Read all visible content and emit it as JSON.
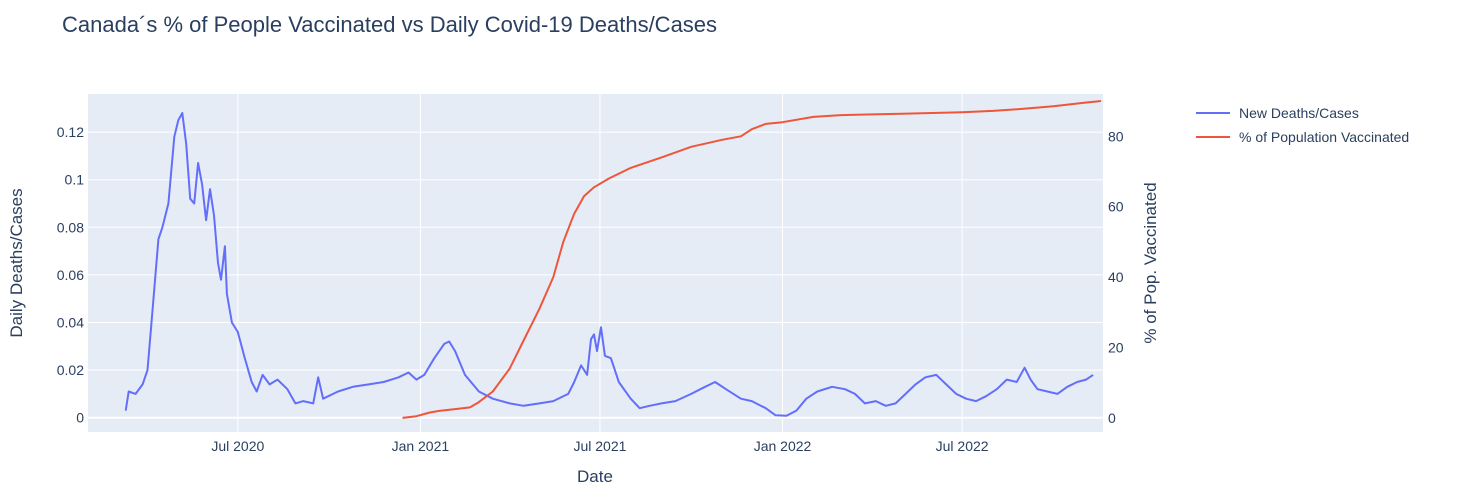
{
  "chart_data": {
    "type": "line",
    "title": "Canada´s % of People Vaccinated vs Daily Covid-19 Deaths/Cases",
    "xlabel": "Date",
    "ylabel": "Daily Deaths/Cases",
    "y2label": "% of Pop. Vaccinated",
    "xlim": [
      "2020-02-01",
      "2022-11-20"
    ],
    "ylim": [
      -0.006,
      0.136
    ],
    "y2lim": [
      -4,
      92
    ],
    "x_ticks": [
      {
        "date": "2020-07-01",
        "label": "Jul 2020"
      },
      {
        "date": "2021-01-01",
        "label": "Jan 2021"
      },
      {
        "date": "2021-07-01",
        "label": "Jul 2021"
      },
      {
        "date": "2022-01-01",
        "label": "Jan 2022"
      },
      {
        "date": "2022-07-01",
        "label": "Jul 2022"
      }
    ],
    "y_ticks": [
      {
        "value": 0,
        "label": "0"
      },
      {
        "value": 0.02,
        "label": "0.02"
      },
      {
        "value": 0.04,
        "label": "0.04"
      },
      {
        "value": 0.06,
        "label": "0.06"
      },
      {
        "value": 0.08,
        "label": "0.08"
      },
      {
        "value": 0.1,
        "label": "0.1"
      },
      {
        "value": 0.12,
        "label": "0.12"
      }
    ],
    "y2_ticks": [
      {
        "value": 0,
        "label": "0"
      },
      {
        "value": 20,
        "label": "20"
      },
      {
        "value": 40,
        "label": "40"
      },
      {
        "value": 60,
        "label": "60"
      },
      {
        "value": 80,
        "label": "80"
      }
    ],
    "grid": true,
    "legend_position": "top-right",
    "series": [
      {
        "name": "New Deaths/Cases",
        "axis": "y",
        "color": "#636efa",
        "points": [
          [
            "2020-03-10",
            0.003
          ],
          [
            "2020-03-13",
            0.011
          ],
          [
            "2020-03-20",
            0.01
          ],
          [
            "2020-03-27",
            0.014
          ],
          [
            "2020-04-01",
            0.02
          ],
          [
            "2020-04-06",
            0.045
          ],
          [
            "2020-04-12",
            0.075
          ],
          [
            "2020-04-16",
            0.08
          ],
          [
            "2020-04-22",
            0.09
          ],
          [
            "2020-04-28",
            0.118
          ],
          [
            "2020-05-02",
            0.125
          ],
          [
            "2020-05-06",
            0.128
          ],
          [
            "2020-05-10",
            0.115
          ],
          [
            "2020-05-14",
            0.092
          ],
          [
            "2020-05-18",
            0.09
          ],
          [
            "2020-05-22",
            0.107
          ],
          [
            "2020-05-26",
            0.098
          ],
          [
            "2020-05-30",
            0.083
          ],
          [
            "2020-06-03",
            0.096
          ],
          [
            "2020-06-07",
            0.085
          ],
          [
            "2020-06-11",
            0.065
          ],
          [
            "2020-06-14",
            0.058
          ],
          [
            "2020-06-18",
            0.072
          ],
          [
            "2020-06-20",
            0.052
          ],
          [
            "2020-06-25",
            0.04
          ],
          [
            "2020-07-01",
            0.036
          ],
          [
            "2020-07-08",
            0.025
          ],
          [
            "2020-07-15",
            0.015
          ],
          [
            "2020-07-20",
            0.011
          ],
          [
            "2020-07-26",
            0.018
          ],
          [
            "2020-08-02",
            0.014
          ],
          [
            "2020-08-10",
            0.016
          ],
          [
            "2020-08-20",
            0.012
          ],
          [
            "2020-08-28",
            0.006
          ],
          [
            "2020-09-05",
            0.007
          ],
          [
            "2020-09-15",
            0.006
          ],
          [
            "2020-09-20",
            0.017
          ],
          [
            "2020-09-25",
            0.008
          ],
          [
            "2020-10-10",
            0.011
          ],
          [
            "2020-10-25",
            0.013
          ],
          [
            "2020-11-10",
            0.014
          ],
          [
            "2020-11-25",
            0.015
          ],
          [
            "2020-12-10",
            0.017
          ],
          [
            "2020-12-20",
            0.019
          ],
          [
            "2020-12-28",
            0.016
          ],
          [
            "2021-01-05",
            0.018
          ],
          [
            "2021-01-15",
            0.025
          ],
          [
            "2021-01-25",
            0.031
          ],
          [
            "2021-01-30",
            0.032
          ],
          [
            "2021-02-05",
            0.028
          ],
          [
            "2021-02-15",
            0.018
          ],
          [
            "2021-03-01",
            0.011
          ],
          [
            "2021-03-15",
            0.008
          ],
          [
            "2021-04-01",
            0.006
          ],
          [
            "2021-04-15",
            0.005
          ],
          [
            "2021-05-01",
            0.006
          ],
          [
            "2021-05-15",
            0.007
          ],
          [
            "2021-05-30",
            0.01
          ],
          [
            "2021-06-05",
            0.015
          ],
          [
            "2021-06-12",
            0.022
          ],
          [
            "2021-06-18",
            0.018
          ],
          [
            "2021-06-22",
            0.033
          ],
          [
            "2021-06-25",
            0.035
          ],
          [
            "2021-06-28",
            0.028
          ],
          [
            "2021-07-02",
            0.038
          ],
          [
            "2021-07-06",
            0.026
          ],
          [
            "2021-07-12",
            0.025
          ],
          [
            "2021-07-20",
            0.015
          ],
          [
            "2021-08-01",
            0.008
          ],
          [
            "2021-08-10",
            0.004
          ],
          [
            "2021-08-20",
            0.005
          ],
          [
            "2021-09-01",
            0.006
          ],
          [
            "2021-09-15",
            0.007
          ],
          [
            "2021-10-01",
            0.01
          ],
          [
            "2021-10-15",
            0.013
          ],
          [
            "2021-10-25",
            0.015
          ],
          [
            "2021-11-05",
            0.012
          ],
          [
            "2021-11-20",
            0.008
          ],
          [
            "2021-12-01",
            0.007
          ],
          [
            "2021-12-15",
            0.004
          ],
          [
            "2021-12-25",
            0.001
          ],
          [
            "2022-01-05",
            0.0008
          ],
          [
            "2022-01-15",
            0.003
          ],
          [
            "2022-01-25",
            0.008
          ],
          [
            "2022-02-05",
            0.011
          ],
          [
            "2022-02-20",
            0.013
          ],
          [
            "2022-03-05",
            0.012
          ],
          [
            "2022-03-15",
            0.01
          ],
          [
            "2022-03-25",
            0.006
          ],
          [
            "2022-04-05",
            0.007
          ],
          [
            "2022-04-15",
            0.005
          ],
          [
            "2022-04-25",
            0.006
          ],
          [
            "2022-05-05",
            0.01
          ],
          [
            "2022-05-15",
            0.014
          ],
          [
            "2022-05-25",
            0.017
          ],
          [
            "2022-06-05",
            0.018
          ],
          [
            "2022-06-15",
            0.014
          ],
          [
            "2022-06-25",
            0.01
          ],
          [
            "2022-07-05",
            0.008
          ],
          [
            "2022-07-15",
            0.007
          ],
          [
            "2022-07-25",
            0.009
          ],
          [
            "2022-08-05",
            0.012
          ],
          [
            "2022-08-15",
            0.016
          ],
          [
            "2022-08-25",
            0.015
          ],
          [
            "2022-09-02",
            0.021
          ],
          [
            "2022-09-08",
            0.016
          ],
          [
            "2022-09-15",
            0.012
          ],
          [
            "2022-09-25",
            0.011
          ],
          [
            "2022-10-05",
            0.01
          ],
          [
            "2022-10-15",
            0.013
          ],
          [
            "2022-10-25",
            0.015
          ],
          [
            "2022-11-03",
            0.016
          ],
          [
            "2022-11-10",
            0.018
          ]
        ]
      },
      {
        "name": "% of Population Vaccinated",
        "axis": "y2",
        "color": "#ef553b",
        "points": [
          [
            "2020-12-14",
            0.0
          ],
          [
            "2020-12-28",
            0.5
          ],
          [
            "2021-01-10",
            1.5
          ],
          [
            "2021-01-20",
            2.0
          ],
          [
            "2021-02-05",
            2.5
          ],
          [
            "2021-02-20",
            3.0
          ],
          [
            "2021-03-01",
            4.5
          ],
          [
            "2021-03-15",
            7.5
          ],
          [
            "2021-04-01",
            14.0
          ],
          [
            "2021-04-15",
            22.0
          ],
          [
            "2021-05-01",
            31.0
          ],
          [
            "2021-05-15",
            40.0
          ],
          [
            "2021-05-25",
            50.0
          ],
          [
            "2021-06-05",
            58.0
          ],
          [
            "2021-06-15",
            63.0
          ],
          [
            "2021-06-25",
            65.5
          ],
          [
            "2021-07-10",
            68.0
          ],
          [
            "2021-08-01",
            71.0
          ],
          [
            "2021-09-01",
            74.0
          ],
          [
            "2021-10-01",
            77.0
          ],
          [
            "2021-11-01",
            79.0
          ],
          [
            "2021-11-20",
            80.0
          ],
          [
            "2021-12-01",
            82.0
          ],
          [
            "2021-12-15",
            83.5
          ],
          [
            "2022-01-01",
            84.0
          ],
          [
            "2022-02-01",
            85.5
          ],
          [
            "2022-03-01",
            86.0
          ],
          [
            "2022-04-01",
            86.2
          ],
          [
            "2022-05-01",
            86.4
          ],
          [
            "2022-06-01",
            86.6
          ],
          [
            "2022-07-01",
            86.8
          ],
          [
            "2022-08-01",
            87.2
          ],
          [
            "2022-09-01",
            87.8
          ],
          [
            "2022-10-01",
            88.5
          ],
          [
            "2022-11-01",
            89.5
          ],
          [
            "2022-11-18",
            90.0
          ]
        ]
      }
    ]
  }
}
